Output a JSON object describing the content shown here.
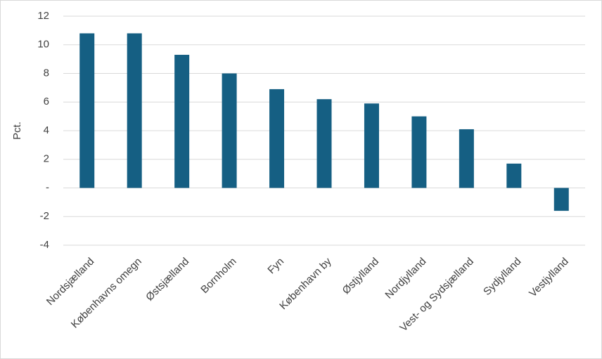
{
  "chart_data": {
    "type": "bar",
    "y_label": "Pct.",
    "categories": [
      "Nordsjælland",
      "Københavns omegn",
      "Østsjælland",
      "Bornholm",
      "Fyn",
      "København by",
      "Østjylland",
      "Nordjylland",
      "Vest- og Sydsjælland",
      "Sydjylland",
      "Vestjylland"
    ],
    "values": [
      10.8,
      10.8,
      9.3,
      8.0,
      6.9,
      6.2,
      5.9,
      5.0,
      4.1,
      1.7,
      -1.6
    ],
    "color": "#155f83",
    "ylim": [
      -4,
      12
    ],
    "yticks": [
      -4,
      -2,
      {
        "value": 0,
        "label": "-"
      },
      2,
      4,
      6,
      8,
      10,
      12
    ],
    "grid": true
  }
}
